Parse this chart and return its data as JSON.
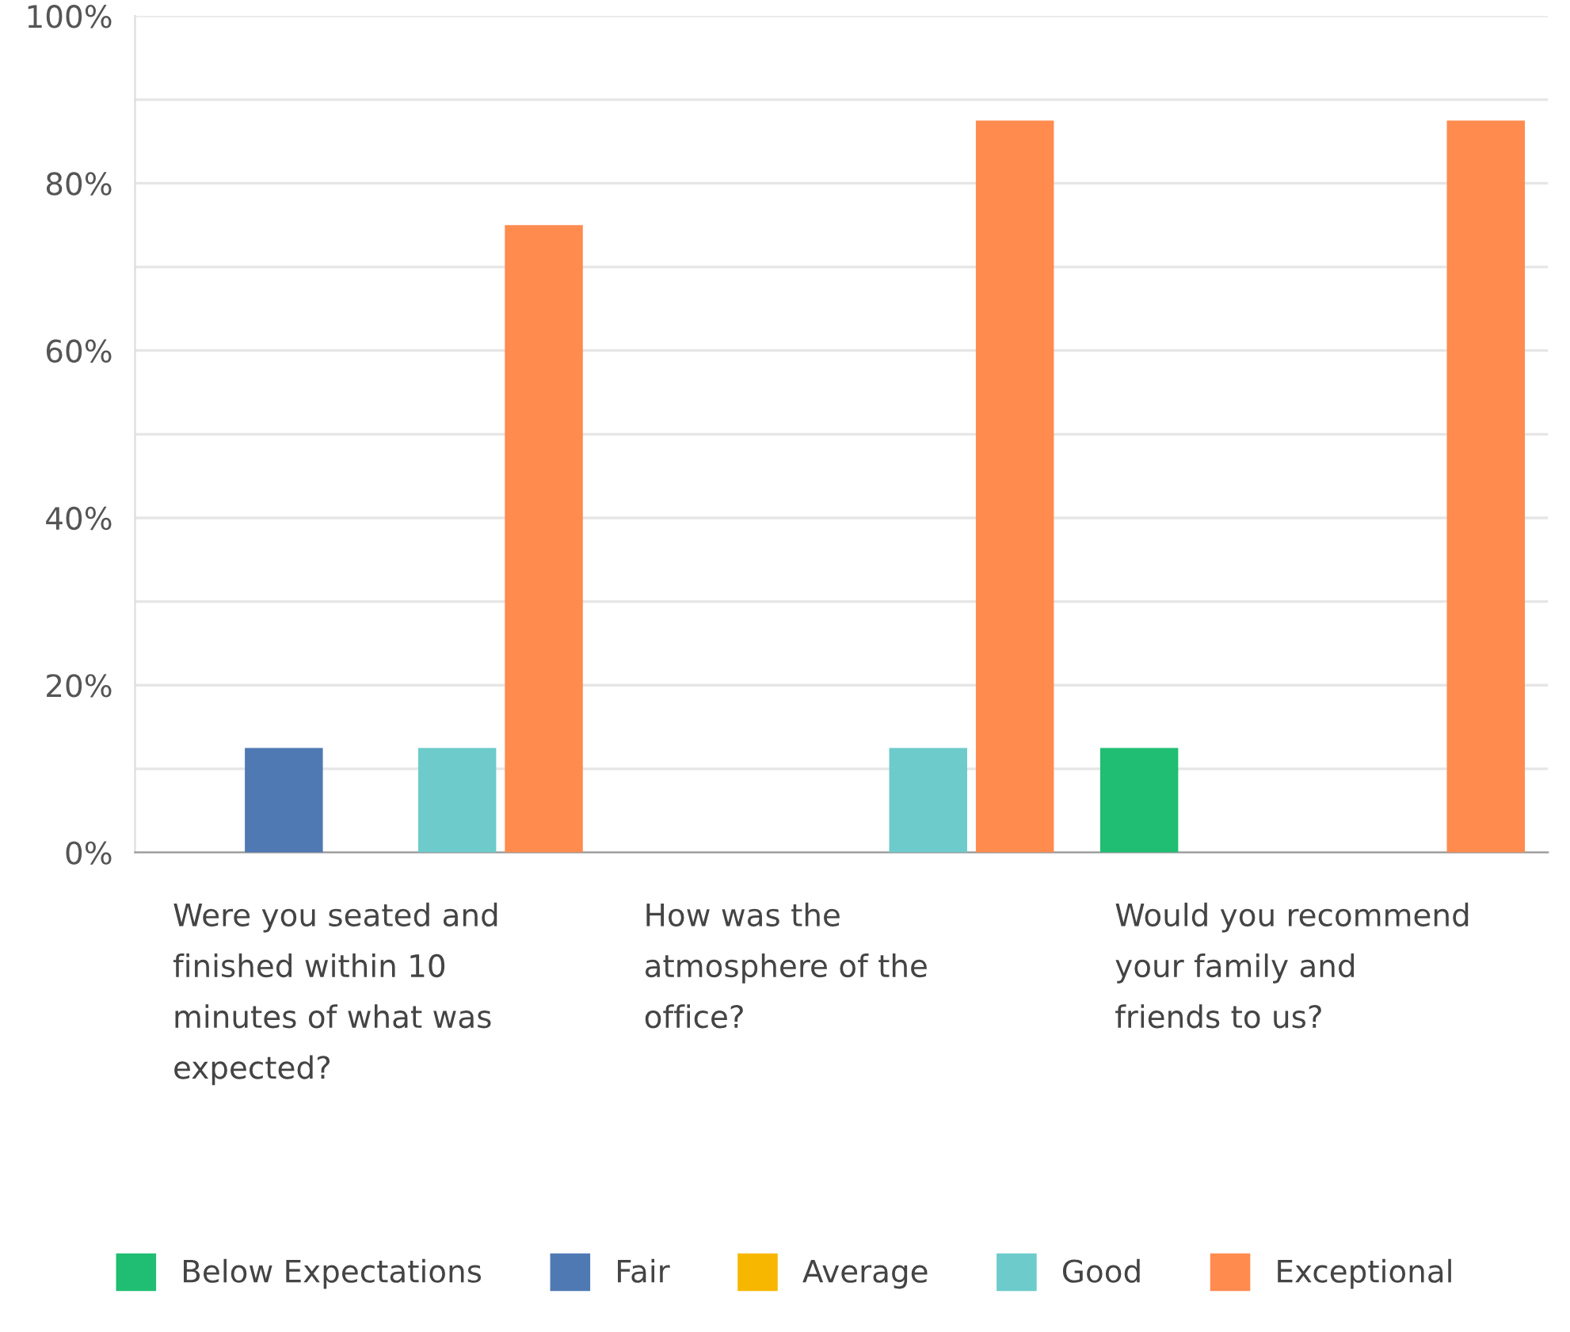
{
  "chart_data": {
    "type": "bar",
    "categories": [
      "Were you seated and finished within 10 minutes of what was expected?",
      "How was the atmosphere of the office?",
      "Would you recommend your family and friends to us?"
    ],
    "series": [
      {
        "name": "Below Expectations",
        "color": "#1fbe72",
        "values": [
          0,
          0,
          12.5
        ]
      },
      {
        "name": "Fair",
        "color": "#4f79b3",
        "values": [
          12.5,
          0,
          0
        ]
      },
      {
        "name": "Average",
        "color": "#f7b700",
        "values": [
          0,
          0,
          0
        ]
      },
      {
        "name": "Good",
        "color": "#6dcbcb",
        "values": [
          12.5,
          12.5,
          0
        ]
      },
      {
        "name": "Exceptional",
        "color": "#ff8b4f",
        "values": [
          75,
          87.5,
          87.5
        ]
      }
    ],
    "ylim": [
      0,
      100
    ],
    "yticks": [
      {
        "value": 0,
        "label": "0%"
      },
      {
        "value": 10,
        "label": null
      },
      {
        "value": 20,
        "label": "20%"
      },
      {
        "value": 30,
        "label": null
      },
      {
        "value": 40,
        "label": "40%"
      },
      {
        "value": 50,
        "label": null
      },
      {
        "value": 60,
        "label": "60%"
      },
      {
        "value": 70,
        "label": null
      },
      {
        "value": 80,
        "label": "80%"
      },
      {
        "value": 90,
        "label": null
      },
      {
        "value": 100,
        "label": "100%"
      }
    ],
    "grid": "y",
    "legend": "bottom"
  }
}
